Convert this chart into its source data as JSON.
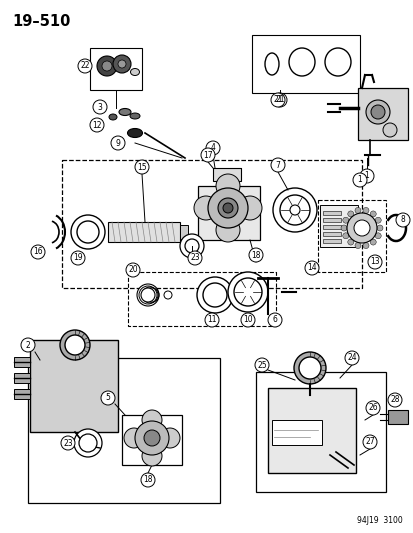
{
  "title": "19–510",
  "caption": "94J19  3100",
  "bg": "#ffffff",
  "fg": "#000000",
  "lw": 0.8,
  "fig_w": 4.14,
  "fig_h": 5.33,
  "dpi": 100
}
